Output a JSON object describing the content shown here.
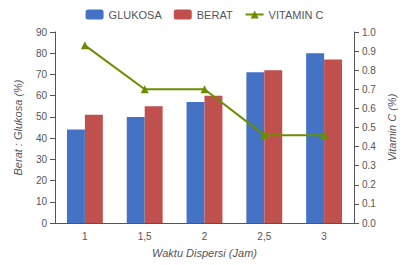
{
  "chart_data": {
    "type": "bar",
    "categories": [
      "1",
      "1,5",
      "2",
      "2,5",
      "3"
    ],
    "xlabel": "Waktu Dispersi (Jam)",
    "ylabel": "Berat : Glukosa (%)",
    "y2label": "Vitamin C (%)",
    "series": [
      {
        "name": "GLUKOSA",
        "type": "bar",
        "color": "#4472C4",
        "values": [
          44,
          50,
          57,
          71,
          80
        ]
      },
      {
        "name": "BERAT",
        "type": "bar",
        "color": "#C0504D",
        "values": [
          51,
          55,
          60,
          72,
          77
        ]
      },
      {
        "name": "VITAMIN C",
        "type": "line",
        "axis": "y2",
        "color": "#6B8E00",
        "marker": "triangle",
        "values": [
          0.93,
          0.7,
          0.7,
          0.46,
          0.46
        ]
      }
    ],
    "ylim": [
      0,
      90
    ],
    "yticks": [
      0,
      10,
      20,
      30,
      40,
      50,
      60,
      70,
      80,
      90
    ],
    "y2lim": [
      0,
      1.0
    ],
    "y2ticks": [
      {
        "value": 0,
        "label": "0.0"
      },
      0.1,
      0.2,
      0.3,
      0.4,
      0.5,
      0.6,
      0.7,
      0.8,
      0.9,
      {
        "value": 1.0,
        "label": "1.0"
      }
    ],
    "grid": false,
    "legend": "top"
  }
}
